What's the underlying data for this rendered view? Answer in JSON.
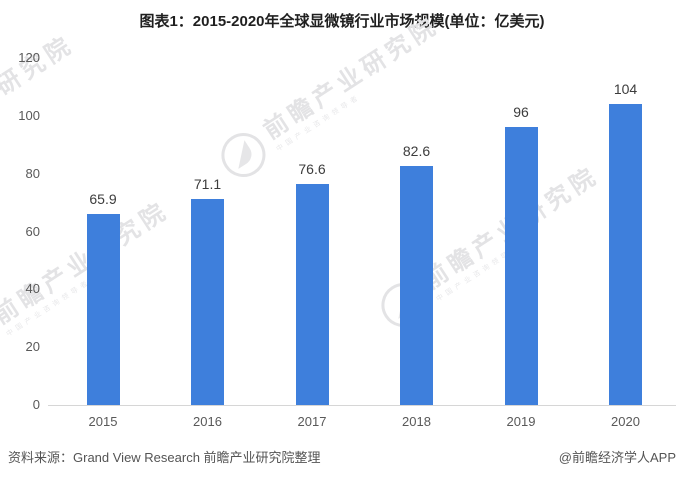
{
  "title": "图表1：2015-2020年全球显微镜行业市场规模(单位：亿美元)",
  "footer": {
    "source": "资料来源：Grand View Research 前瞻产业研究院整理",
    "credit": "@前瞻经济学人APP"
  },
  "watermark": {
    "text": "前瞻产业研究院",
    "subtext": "中国产业咨询领导者",
    "logo": "qianzhan-fan-logo"
  },
  "colors": {
    "bar": "#3E7FDC",
    "axis_line": "#d6d6d6",
    "tick_label": "#595959",
    "value_label": "#3c3c3c",
    "title": "#1f1f1f",
    "watermark": "#e3e3e5"
  },
  "chart_data": {
    "type": "bar",
    "title": "图表1：2015-2020年全球显微镜行业市场规模(单位：亿美元)",
    "categories": [
      "2015",
      "2016",
      "2017",
      "2018",
      "2019",
      "2020"
    ],
    "values": [
      65.9,
      71.1,
      76.6,
      82.6,
      96,
      104
    ],
    "value_labels": [
      "65.9",
      "71.1",
      "76.6",
      "82.6",
      "96",
      "104"
    ],
    "xlabel": "",
    "ylabel": "",
    "ylim": [
      0,
      120
    ],
    "yticks": [
      0,
      20,
      40,
      60,
      80,
      100,
      120
    ],
    "grid": false,
    "legend": false,
    "bar_color": "#3E7FDC"
  }
}
